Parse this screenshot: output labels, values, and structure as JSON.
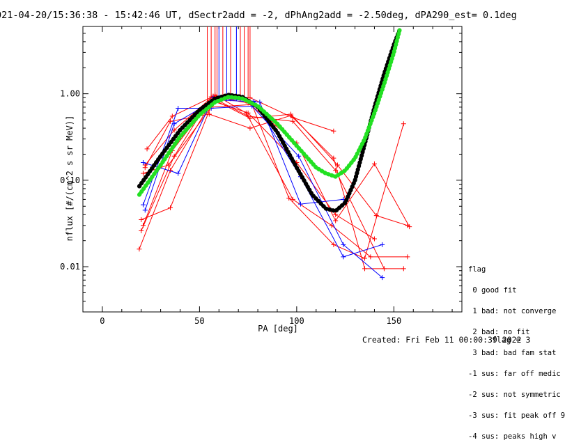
{
  "title": "021-04-20/15:36:38 - 15:42:46 UT, dSectr2add = -2, dPhAng2add = -2.50deg, dPA290_est=   0.1deg",
  "created": "Created: Fri Feb 11 00:00:39 2022",
  "flag_value": "flag = 3",
  "legend": {
    "title": "flag",
    "items": [
      " 0 good fit",
      " 1 bad: not converge",
      " 2 bad: no fit",
      " 3 bad: bad fam stat",
      "-1 sus: far off medic",
      "-2 sus: not symmetric",
      "-3 sus: fit peak off 9",
      "-4 sus: peaks high v"
    ]
  },
  "colors": {
    "red": "#ff0000",
    "blue": "#0000ff",
    "green": "#22e022",
    "black": "#000000"
  },
  "chart_data": {
    "type": "scatter",
    "xlabel": "PA [deg]",
    "ylabel": "nflux [#/(cm^2 s sr MeV)]",
    "xlim": [
      -10,
      185
    ],
    "ylim": [
      0.003,
      6.0
    ],
    "yscale": "log",
    "x_ticks": [
      0,
      50,
      100,
      150
    ],
    "x_tick_labels": [
      "0",
      "50",
      "100",
      "150"
    ],
    "y_ticks": [
      0.01,
      0.1,
      1.0
    ],
    "y_tick_labels": [
      "0.01",
      "0.10",
      "1.00"
    ],
    "vlines": [
      {
        "x": 54,
        "color": "red"
      },
      {
        "x": 56,
        "color": "red"
      },
      {
        "x": 58,
        "color": "red"
      },
      {
        "x": 59,
        "color": "red"
      },
      {
        "x": 60,
        "color": "blue"
      },
      {
        "x": 62,
        "color": "red"
      },
      {
        "x": 64,
        "color": "blue"
      },
      {
        "x": 66,
        "color": "red"
      },
      {
        "x": 69,
        "color": "blue"
      },
      {
        "x": 71,
        "color": "red"
      },
      {
        "x": 73,
        "color": "red"
      },
      {
        "x": 75,
        "color": "red"
      },
      {
        "x": 76,
        "color": "red"
      }
    ],
    "series": [
      {
        "color": "red",
        "x": [
          19,
          35,
          57,
          76,
          97,
          121,
          141,
          157
        ],
        "y": [
          0.016,
          0.13,
          0.86,
          0.52,
          0.58,
          0.15,
          0.039,
          0.03
        ]
      },
      {
        "color": "red",
        "x": [
          20,
          37,
          56,
          75,
          98,
          120,
          145
        ],
        "y": [
          0.026,
          0.19,
          0.92,
          0.55,
          0.48,
          0.13,
          0.0095
        ]
      },
      {
        "color": "red",
        "x": [
          21,
          36,
          58,
          74,
          98,
          118,
          138,
          157
        ],
        "y": [
          0.03,
          0.22,
          0.97,
          0.6,
          0.06,
          0.03,
          0.013,
          0.013
        ]
      },
      {
        "color": "red",
        "x": [
          22,
          35,
          55,
          76,
          97,
          119,
          135,
          155
        ],
        "y": [
          0.14,
          0.48,
          0.58,
          0.4,
          0.56,
          0.18,
          0.0095,
          0.0095
        ]
      },
      {
        "color": "red",
        "x": [
          23,
          36,
          57,
          75,
          100,
          120,
          140,
          158
        ],
        "y": [
          0.23,
          0.55,
          0.93,
          0.78,
          0.27,
          0.034,
          0.155,
          0.029
        ]
      },
      {
        "color": "red",
        "x": [
          21,
          34,
          56,
          77,
          96,
          119,
          135,
          155
        ],
        "y": [
          0.12,
          0.15,
          0.7,
          0.75,
          0.062,
          0.018,
          0.0125,
          0.45
        ]
      },
      {
        "color": "red",
        "x": [
          20,
          35,
          57,
          75,
          100,
          120,
          140
        ],
        "y": [
          0.035,
          0.048,
          0.82,
          0.6,
          0.16,
          0.04,
          0.021
        ]
      },
      {
        "color": "red",
        "x": [
          22,
          37,
          57,
          76,
          98,
          119
        ],
        "y": [
          0.15,
          0.38,
          0.94,
          0.9,
          0.53,
          0.37
        ]
      },
      {
        "color": "blue",
        "x": [
          21,
          39,
          56,
          77,
          101,
          124,
          144
        ],
        "y": [
          0.052,
          0.68,
          0.68,
          0.72,
          0.19,
          0.018,
          0.0075
        ]
      },
      {
        "color": "blue",
        "x": [
          22,
          37,
          58,
          81,
          102,
          124
        ],
        "y": [
          0.045,
          0.45,
          0.85,
          0.8,
          0.053,
          0.06
        ]
      },
      {
        "color": "blue",
        "x": [
          21,
          39,
          57,
          78,
          102,
          124,
          144
        ],
        "y": [
          0.16,
          0.12,
          0.9,
          0.82,
          0.11,
          0.013,
          0.018
        ]
      }
    ],
    "fits": [
      {
        "color": "black",
        "x": [
          19,
          30,
          40,
          50,
          58,
          65,
          72,
          80,
          90,
          100,
          108,
          115,
          120,
          125,
          130,
          135,
          140,
          145,
          150,
          153
        ],
        "y": [
          0.085,
          0.19,
          0.38,
          0.65,
          0.88,
          0.97,
          0.92,
          0.7,
          0.36,
          0.14,
          0.068,
          0.047,
          0.044,
          0.055,
          0.1,
          0.26,
          0.7,
          1.7,
          3.7,
          5.5
        ]
      },
      {
        "color": "green",
        "x": [
          19,
          30,
          40,
          50,
          58,
          65,
          72,
          80,
          90,
          100,
          110,
          115,
          120,
          125,
          130,
          135,
          140,
          145,
          150,
          153
        ],
        "y": [
          0.068,
          0.15,
          0.32,
          0.57,
          0.8,
          0.92,
          0.88,
          0.72,
          0.45,
          0.25,
          0.14,
          0.12,
          0.11,
          0.13,
          0.18,
          0.3,
          0.6,
          1.3,
          3.0,
          5.5
        ]
      }
    ]
  }
}
